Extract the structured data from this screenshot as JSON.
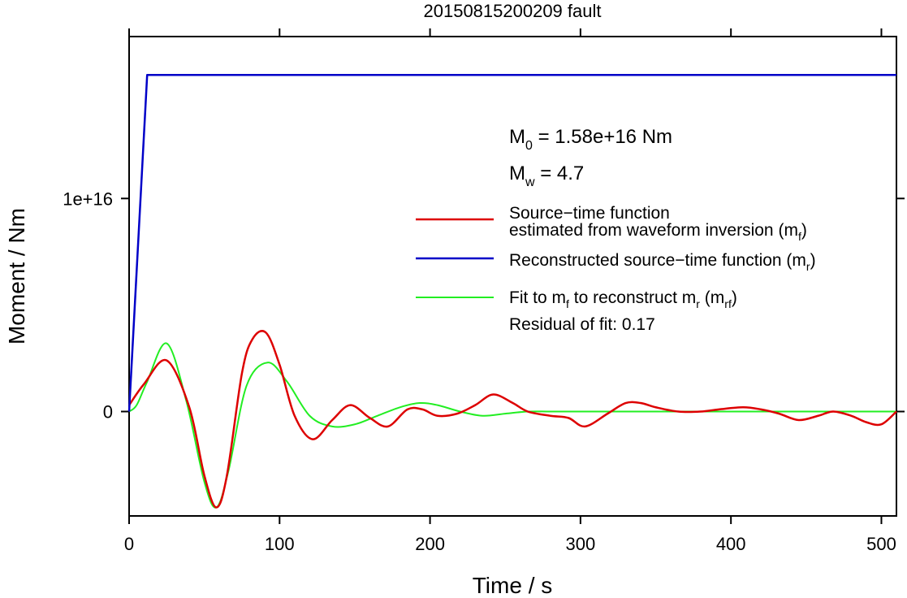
{
  "chart_data": {
    "type": "line",
    "title": "20150815200209 fault",
    "xlabel": "Time / s",
    "ylabel": "Moment / Nm",
    "xlim": [
      0,
      510
    ],
    "ylim": [
      -4900000000000000.0,
      1.76e+16
    ],
    "x_ticks": [
      {
        "value": 0,
        "label": "0"
      },
      {
        "value": 100,
        "label": "100"
      },
      {
        "value": 200,
        "label": "200"
      },
      {
        "value": 300,
        "label": "300"
      },
      {
        "value": 400,
        "label": "400"
      },
      {
        "value": 500,
        "label": "500"
      }
    ],
    "y_ticks": [
      {
        "value": 0,
        "label": "0"
      },
      {
        "value": 1e+16,
        "label": "1e+16"
      }
    ],
    "grid": false,
    "legend_position": "right",
    "annotations": {
      "m0_main": "M",
      "m0_sub": "0",
      "m0_rest": " = 1.58e+16 Nm",
      "mw_main": "M",
      "mw_sub": "w",
      "mw_rest": " = 4.7",
      "residual": "Residual of fit: 0.17"
    },
    "legend": [
      {
        "color": "#dd0000",
        "line1": "Source−time function",
        "line2_main": "estimated from waveform inversion (m",
        "line2_sub": "f",
        "line2_end": ")"
      },
      {
        "color": "#0000c8",
        "line1_main": "Reconstructed source−time function (m",
        "line1_sub": "r",
        "line1_end": ")"
      },
      {
        "color": "#22ee22",
        "p1": "Fit to m",
        "s1": "f",
        "p2": " to reconstruct m",
        "s2": "r",
        "p3": " (m",
        "s3": "rf",
        "p4": ")"
      }
    ],
    "series": [
      {
        "color": "#0000c8",
        "x": [
          0,
          12,
          510
        ],
        "y": [
          0,
          1.58e+16,
          1.58e+16
        ]
      },
      {
        "color": "#dd0000",
        "x": [
          0,
          10,
          25,
          40,
          50,
          58,
          65,
          75,
          82,
          91,
          100,
          110,
          122,
          135,
          147,
          160,
          172,
          185,
          195,
          205,
          218,
          230,
          242,
          255,
          265,
          280,
          292,
          303,
          318,
          330,
          340,
          350,
          365,
          380,
          392,
          408,
          420,
          432,
          445,
          458,
          468,
          480,
          490,
          500,
          510
        ],
        "y": [
          300000000000000.0,
          1300000000000000.0,
          2400000000000000.0,
          200000000000000.0,
          -3000000000000000.0,
          -4500000000000000.0,
          -3000000000000000.0,
          1800000000000000.0,
          3400000000000000.0,
          3700000000000000.0,
          2200000000000000.0,
          -200000000000000.0,
          -1300000000000000.0,
          -400000000000000.0,
          300000000000000.0,
          -300000000000000.0,
          -700000000000000.0,
          100000000000000.0,
          100000000000000.0,
          -200000000000000.0,
          -100000000000000.0,
          300000000000000.0,
          800000000000000.0,
          400000000000000.0,
          0.0,
          -200000000000000.0,
          -300000000000000.0,
          -700000000000000.0,
          -100000000000000.0,
          400000000000000.0,
          400000000000000.0,
          200000000000000.0,
          0.0,
          0.0,
          100000000000000.0,
          200000000000000.0,
          100000000000000.0,
          -100000000000000.0,
          -400000000000000.0,
          -200000000000000.0,
          0.0,
          -200000000000000.0,
          -500000000000000.0,
          -600000000000000.0,
          0.0
        ]
      },
      {
        "color": "#22ee22",
        "x": [
          0,
          5,
          12,
          25,
          38,
          50,
          58,
          66,
          78,
          92,
          105,
          120,
          135,
          150,
          165,
          180,
          193,
          205,
          220,
          235,
          250,
          265,
          280,
          300,
          330,
          360,
          400,
          450,
          510
        ],
        "y": [
          0,
          300000000000000.0,
          1400000000000000.0,
          3200000000000000.0,
          500000000000000.0,
          -3300000000000000.0,
          -4500000000000000.0,
          -2800000000000000.0,
          1200000000000000.0,
          2300000000000000.0,
          1400000000000000.0,
          -200000000000000.0,
          -700000000000000.0,
          -600000000000000.0,
          -200000000000000.0,
          200000000000000.0,
          400000000000000.0,
          300000000000000.0,
          0.0,
          -200000000000000.0,
          -100000000000000.0,
          0.0,
          0.0,
          0.0,
          0.0,
          0.0,
          0.0,
          0.0,
          0.0
        ]
      }
    ]
  }
}
